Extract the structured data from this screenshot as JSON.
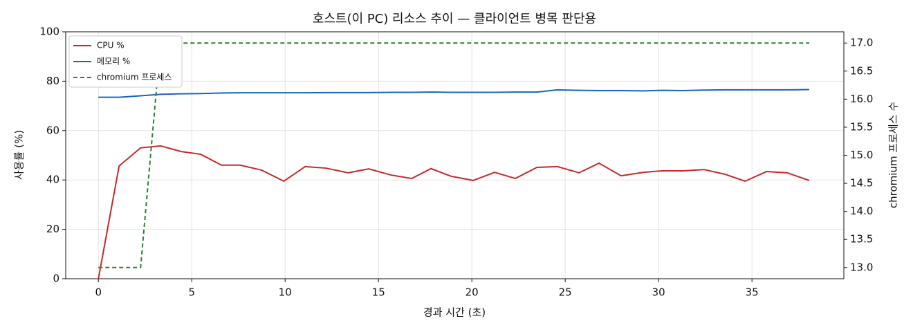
{
  "chart_data": {
    "type": "line",
    "title": "호스트(이 PC) 리소스 추이 — 클라이언트 병목 판단용",
    "x_label": "경과 시간 (초)",
    "y_label": "사용률 (%)",
    "y2_label": "chromium 프로세스 수",
    "x": [
      0,
      1.11,
      2.26,
      3.33,
      4.44,
      5.48,
      6.59,
      7.59,
      8.74,
      9.93,
      11.07,
      12.19,
      13.37,
      14.48,
      15.67,
      16.78,
      17.81,
      18.89,
      20.07,
      21.22,
      22.33,
      23.48,
      24.59,
      25.74,
      26.81,
      27.99,
      29.19,
      30.19,
      31.33,
      32.44,
      33.56,
      34.63,
      35.78,
      36.89,
      38.07
    ],
    "series": [
      {
        "name": "CPU %",
        "color": "#c62828",
        "dash": "none",
        "values": [
          0,
          45.7,
          53,
          53.8,
          51.5,
          50.4,
          46,
          46,
          44,
          39.5,
          45.4,
          44.8,
          42.9,
          44.5,
          42,
          40.6,
          44.6,
          41.5,
          39.8,
          43.1,
          40.6,
          45.1,
          45.4,
          42.9,
          46.8,
          41.7,
          43.1,
          43.7,
          43.7,
          44.2,
          42.3,
          39.5,
          43.4,
          42.9,
          39.8
        ]
      },
      {
        "name": "메모리 %",
        "color": "#1565c0",
        "dash": "none",
        "values": [
          73.5,
          73.5,
          74.1,
          74.7,
          74.9,
          75,
          75.2,
          75.3,
          75.3,
          75.3,
          75.3,
          75.4,
          75.4,
          75.4,
          75.5,
          75.5,
          75.6,
          75.5,
          75.5,
          75.5,
          75.6,
          75.6,
          76.5,
          76.3,
          76.2,
          76.2,
          76.1,
          76.3,
          76.2,
          76.4,
          76.5,
          76.5,
          76.5,
          76.5,
          76.6
        ]
      },
      {
        "name": "chromium 프로세스",
        "color": "#2e7d32",
        "dash": "6 4",
        "axis": "y2",
        "values": [
          13,
          13,
          13,
          17,
          17,
          17,
          17,
          17,
          17,
          17,
          17,
          17,
          17,
          17,
          17,
          17,
          17,
          17,
          17,
          17,
          17,
          17,
          17,
          17,
          17,
          17,
          17,
          17,
          17,
          17,
          17,
          17,
          17,
          17,
          17
        ]
      }
    ],
    "xlim": [
      -1.75,
      39.92
    ],
    "xticks": [
      0,
      5,
      10,
      15,
      20,
      25,
      30,
      35
    ],
    "ylim": [
      0,
      100
    ],
    "yticks": [
      0,
      20,
      40,
      60,
      80,
      100
    ],
    "y2lim": [
      12.8,
      17.2
    ],
    "y2ticks": [
      {
        "value": 13,
        "label": "13.0"
      },
      {
        "value": 13.5,
        "label": "13.5"
      },
      {
        "value": 14,
        "label": "14.0"
      },
      {
        "value": 14.5,
        "label": "14.5"
      },
      {
        "value": 15,
        "label": "15.0"
      },
      {
        "value": 15.5,
        "label": "15.5"
      },
      {
        "value": 16,
        "label": "16.0"
      },
      {
        "value": 16.5,
        "label": "16.5"
      },
      {
        "value": 17,
        "label": "17.0"
      }
    ],
    "grid": true,
    "legend": "upper-left"
  }
}
